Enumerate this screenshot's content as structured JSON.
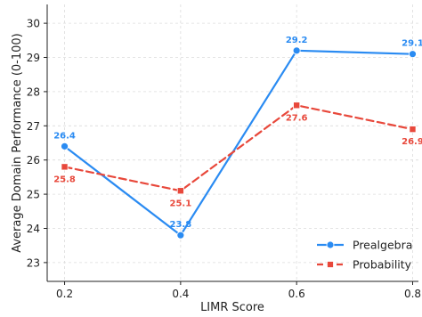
{
  "chart_data": {
    "type": "line",
    "xlabel": "LIMR Score",
    "ylabel": "Average Domain Performance (0-100)",
    "x": [
      0.2,
      0.4,
      0.6,
      0.8
    ],
    "x_tick_labels": [
      "0.2",
      "0.4",
      "0.6",
      "0.8"
    ],
    "xlim": [
      0.17,
      0.81
    ],
    "ylim": [
      22.45,
      30.55
    ],
    "y_ticks": [
      23,
      24,
      25,
      26,
      27,
      28,
      29,
      30
    ],
    "grid": true,
    "legend_position": "lower-right",
    "series": [
      {
        "name": "Prealgebra",
        "values": [
          26.4,
          23.8,
          29.2,
          29.1
        ],
        "labels": [
          "26.4",
          "23.8",
          "29.2",
          "29.1"
        ],
        "color": "#2A8BF2",
        "line_style": "solid",
        "marker": "circle",
        "label_position": "above"
      },
      {
        "name": "Probability",
        "values": [
          25.8,
          25.1,
          27.6,
          26.9
        ],
        "labels": [
          "25.8",
          "25.1",
          "27.6",
          "26.9"
        ],
        "color": "#E8483B",
        "line_style": "dashed",
        "marker": "square",
        "label_position": "below"
      }
    ]
  }
}
